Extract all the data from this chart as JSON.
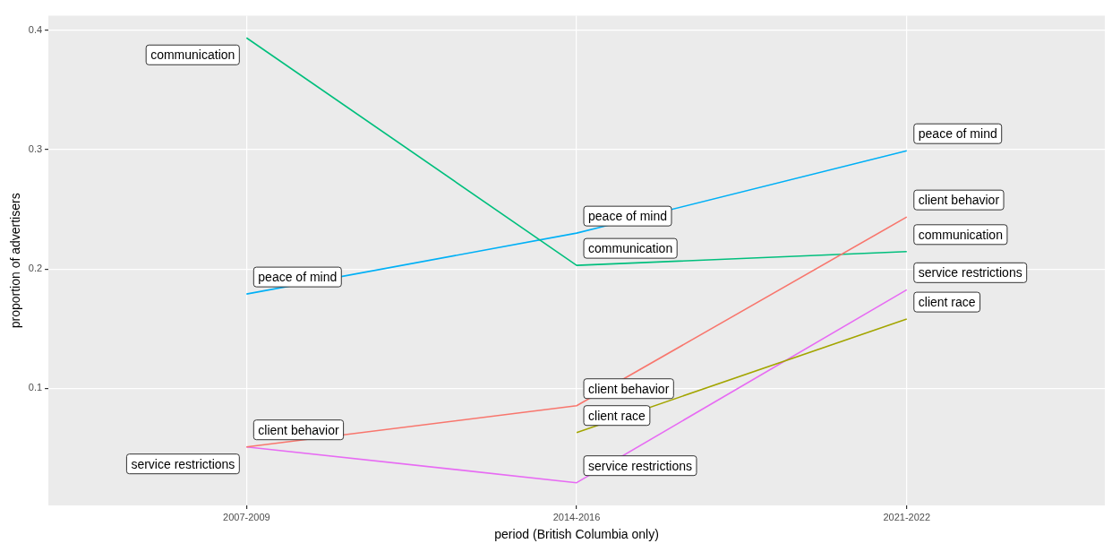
{
  "chart_data": {
    "type": "line",
    "xlabel": "period (British Columbia only)",
    "ylabel": "proportion of advertisers",
    "categories": [
      "2007-2009",
      "2014-2016",
      "2021-2022"
    ],
    "series": [
      {
        "name": "client behavior",
        "color": "#F8766D",
        "values": [
          0.051,
          0.0855,
          0.2435
        ]
      },
      {
        "name": "client race",
        "color": "#A3A500",
        "values": [
          null,
          0.063,
          0.158
        ]
      },
      {
        "name": "communication",
        "color": "#00BF7D",
        "values": [
          0.3935,
          0.203,
          0.2145
        ]
      },
      {
        "name": "peace of mind",
        "color": "#00B0F6",
        "values": [
          0.179,
          0.23,
          0.299
        ]
      },
      {
        "name": "service restrictions",
        "color": "#E76BF3",
        "values": [
          0.051,
          0.021,
          0.1826
        ]
      }
    ],
    "ylim": [
      0.002,
      0.412
    ],
    "yticks": [
      0.1,
      0.2,
      0.3,
      0.4
    ],
    "grid": true,
    "legend": false,
    "marker": "none",
    "line_style": "solid"
  }
}
